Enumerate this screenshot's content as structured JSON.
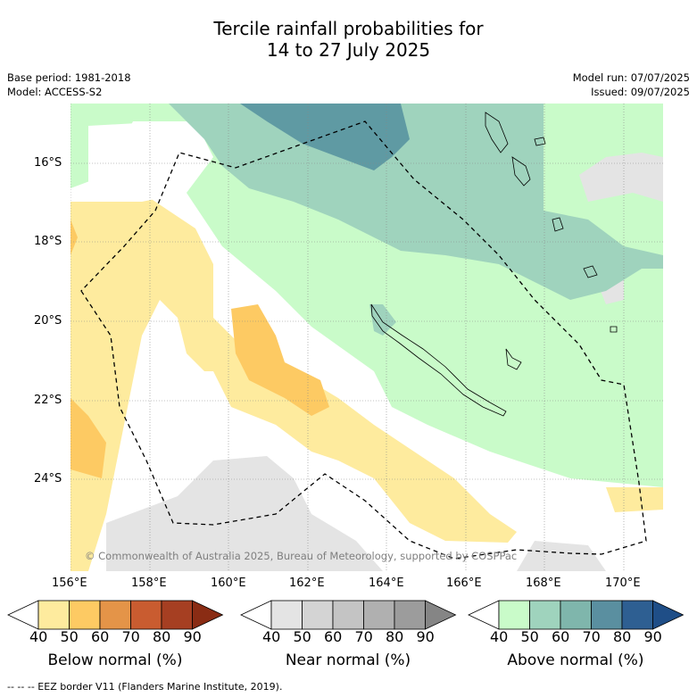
{
  "title": {
    "line1": "Tercile rainfall probabilities for",
    "line2": "14 to 27 July 2025"
  },
  "meta": {
    "base_period": "Base period: 1981-2018",
    "model": "Model: ACCESS-S2",
    "model_run": "Model run: 07/07/2025",
    "issued": "Issued: 09/07/2025"
  },
  "axes": {
    "lat_labels": [
      "16°S",
      "18°S",
      "20°S",
      "22°S",
      "24°S"
    ],
    "lon_labels": [
      "156°E",
      "158°E",
      "160°E",
      "162°E",
      "164°E",
      "166°E",
      "168°E",
      "170°E"
    ]
  },
  "copyright": "© Commonwealth of Australia 2025, Bureau of Meteorology, supported by COSPPac",
  "colorbars": [
    {
      "label": "Below normal (%)",
      "ticks": [
        "40",
        "50",
        "60",
        "70",
        "80",
        "90"
      ],
      "colors": [
        "#ffffff",
        "#feeb9e",
        "#fdca63",
        "#e49448",
        "#c95c30",
        "#a63f22",
        "#8a2c14"
      ]
    },
    {
      "label": "Near normal (%)",
      "ticks": [
        "40",
        "50",
        "60",
        "70",
        "80",
        "90"
      ],
      "colors": [
        "#ffffff",
        "#e4e4e4",
        "#d4d4d4",
        "#c4c4c4",
        "#b0b0b0",
        "#9c9c9c",
        "#858585"
      ]
    },
    {
      "label": "Above normal (%)",
      "ticks": [
        "40",
        "50",
        "60",
        "70",
        "80",
        "90"
      ],
      "colors": [
        "#ffffff",
        "#c9fbc9",
        "#9fd3bd",
        "#7fb6ac",
        "#5a8fa0",
        "#2e5f92",
        "#1f4e87"
      ]
    }
  ],
  "footer": "--  --  -- EEZ border V11 (Flanders Marine Institute, 2019)."
}
